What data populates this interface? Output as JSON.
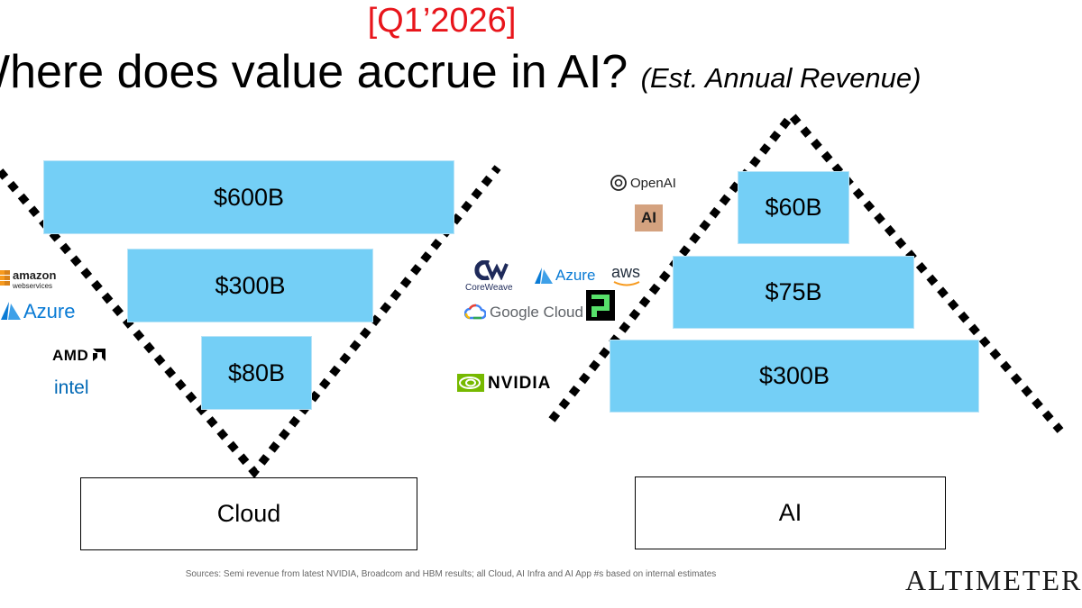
{
  "header": {
    "date_tag": "[Q1’2026]",
    "title": "Where does value accrue in AI?",
    "subtitle": "(Est. Annual Revenue)"
  },
  "cloud": {
    "bars": [
      {
        "label": "$600B",
        "value": 600
      },
      {
        "label": "$300B",
        "value": 300
      },
      {
        "label": "$80B",
        "value": 80
      }
    ],
    "base_label": "Cloud",
    "logos": {
      "amazon": "amazon",
      "amazon_sub": "webservices",
      "azure": "Azure",
      "amd": "AMD",
      "intel": "intel"
    }
  },
  "ai": {
    "bars": [
      {
        "label": "$60B",
        "value": 60
      },
      {
        "label": "$75B",
        "value": 75
      },
      {
        "label": "$300B",
        "value": 300
      }
    ],
    "base_label": "AI",
    "logos": {
      "openai": "OpenAI",
      "anthropic": "AI",
      "coreweave": "CoreWeave",
      "azure": "Azure",
      "aws": "aws",
      "google": "Google Cloud",
      "nvidia": "NVIDIA"
    }
  },
  "footer": {
    "sources": "Sources: Semi revenue from latest NVIDIA, Broadcom and HBM results; all Cloud, AI Infra and AI App #s based on internal estimates",
    "brand": "ALTIMETER"
  },
  "colors": {
    "bar": "#74cff6",
    "date_tag": "#e8151b",
    "amazon_orange": "#f79a1e",
    "azure_blue": "#0a7bd5",
    "nvidia_green": "#76b900",
    "intel_blue": "#0068b5",
    "anthropic_tan": "#d4a27f"
  }
}
